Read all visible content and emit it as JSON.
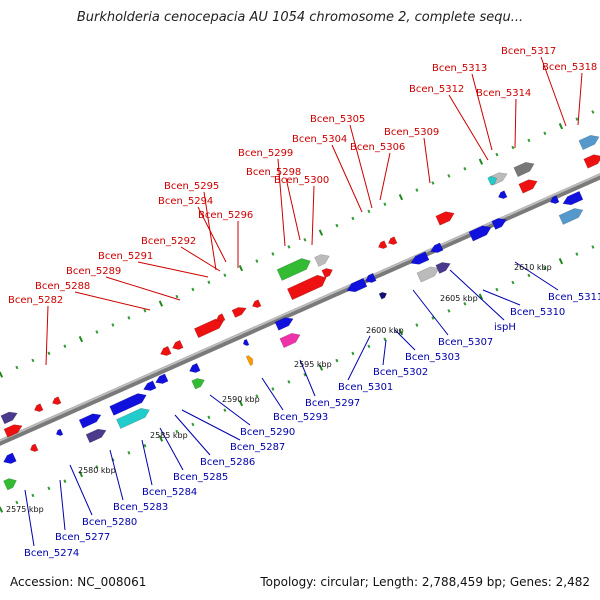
{
  "title": "Burkholderia cenocepacia AU 1054 chromosome 2, complete sequ...",
  "footer": {
    "accession": "Accession: NC_008061",
    "topology": "Topology: circular; Length: 2,788,459 bp; Genes: 2,482"
  },
  "colors": {
    "forward_gene": "#ee1111",
    "reverse_gene": "#1111ee",
    "label_forward": "#cc0000",
    "label_reverse": "#0000aa",
    "backbone": "#888888",
    "tick": "#228822"
  },
  "scale_labels": [
    "2575 kbp",
    "2580 kbp",
    "2585 kbp",
    "2590 kbp",
    "2595 kbp",
    "2600 kbp",
    "2605 kbp",
    "2610 kbp"
  ],
  "forward_labels": [
    "Bcen_5282",
    "Bcen_5288",
    "Bcen_5289",
    "Bcen_5291",
    "Bcen_5292",
    "Bcen_5294",
    "Bcen_5295",
    "Bcen_5296",
    "Bcen_5298",
    "Bcen_5299",
    "Bcen_5300",
    "Bcen_5304",
    "Bcen_5305",
    "Bcen_5306",
    "Bcen_5309",
    "Bcen_5312",
    "Bcen_5313",
    "Bcen_5314",
    "Bcen_5317",
    "Bcen_5318"
  ],
  "reverse_labels": [
    "Bcen_5274",
    "Bcen_5277",
    "Bcen_5280",
    "Bcen_5283",
    "Bcen_5284",
    "Bcen_5285",
    "Bcen_5286",
    "Bcen_5287",
    "Bcen_5290",
    "Bcen_5293",
    "Bcen_5297",
    "Bcen_5301",
    "Bcen_5302",
    "Bcen_5303",
    "Bcen_5307",
    "ispH",
    "Bcen_5310",
    "Bcen_5311"
  ]
}
